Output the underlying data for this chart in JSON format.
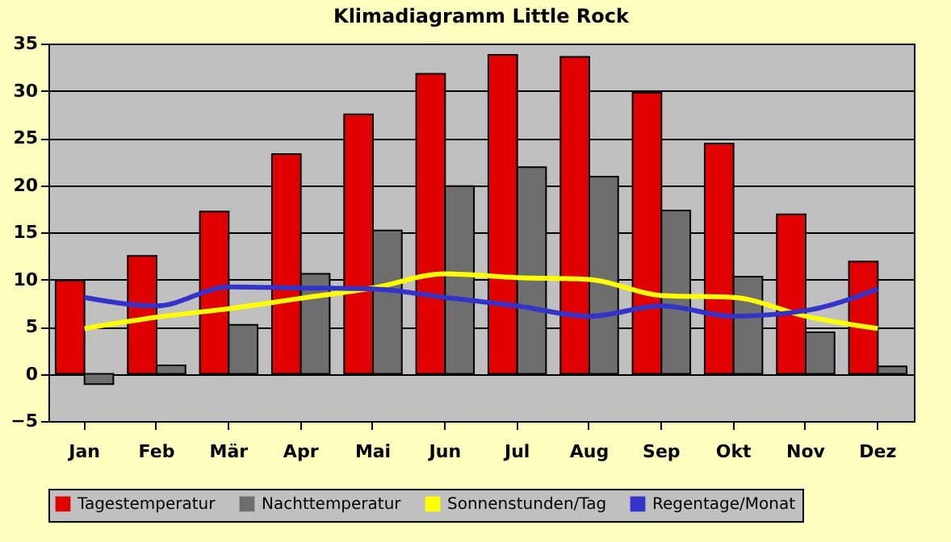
{
  "chart_data": {
    "type": "bar",
    "title": "Klimadiagramm Little Rock",
    "categories": [
      "Jan",
      "Feb",
      "Mär",
      "Apr",
      "Mai",
      "Jun",
      "Jul",
      "Aug",
      "Sep",
      "Okt",
      "Nov",
      "Dez"
    ],
    "series": [
      {
        "name": "Tagestemperatur",
        "color": "#e00000",
        "values": [
          9.9,
          12.5,
          17.2,
          23.3,
          27.5,
          31.8,
          33.8,
          33.6,
          29.8,
          24.4,
          16.9,
          11.9
        ]
      },
      {
        "name": "Nachttemperatur",
        "color": "#6e6e6e",
        "values": [
          -1.1,
          0.9,
          5.2,
          10.6,
          15.2,
          19.9,
          21.9,
          20.9,
          17.3,
          10.3,
          4.4,
          0.8
        ]
      },
      {
        "name": "Sonnenstunden/Tag",
        "type": "line",
        "color": "#ffff00",
        "values": [
          4.8,
          6.0,
          6.9,
          8.0,
          9.1,
          10.6,
          10.2,
          10.0,
          8.3,
          8.1,
          6.1,
          4.8
        ]
      },
      {
        "name": "Regentage/Monat",
        "type": "line",
        "color": "#3333cc",
        "values": [
          8.1,
          7.2,
          9.2,
          9.1,
          9.0,
          8.1,
          7.2,
          6.1,
          7.2,
          6.1,
          6.7,
          9.0
        ]
      }
    ],
    "ylim": [
      -5,
      35
    ],
    "yticks": [
      -5,
      0,
      5,
      10,
      15,
      20,
      25,
      30,
      35
    ],
    "grid": "y",
    "legend": "bottom"
  }
}
